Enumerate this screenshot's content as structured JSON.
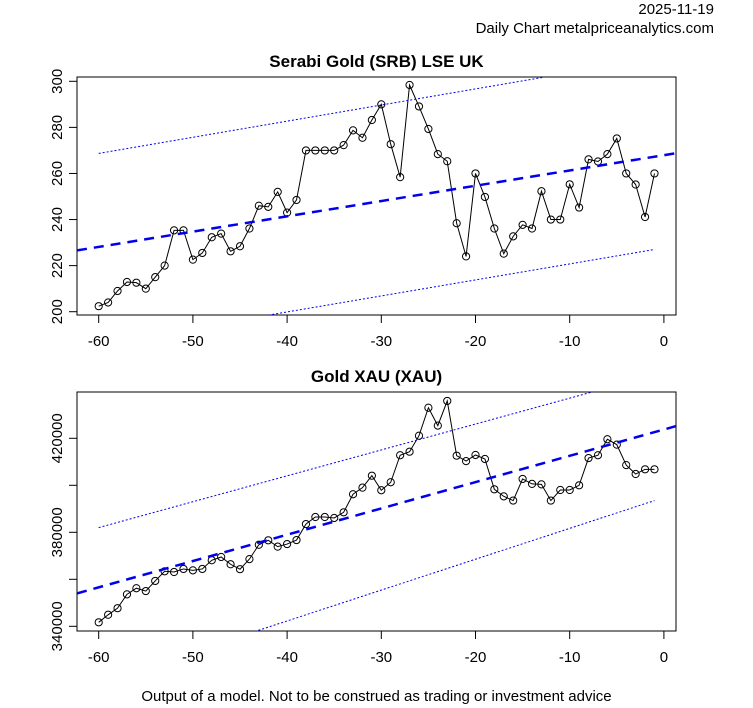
{
  "header": {
    "date": "2025-11-19",
    "source": "Daily Chart metalpriceanalytics.com"
  },
  "footer": "Output of a model. Not to be construed as trading or investment advice",
  "colors": {
    "price": "#000000",
    "trend": "#0000ee",
    "band": "#0000ee"
  },
  "chart_data": [
    {
      "type": "line",
      "title": "Serabi Gold (SRB) LSE UK",
      "xlabel": "",
      "ylabel": "",
      "xlim": [
        -62.3,
        1.3
      ],
      "ylim": [
        198,
        302
      ],
      "xticks": [
        -60,
        -50,
        -40,
        -30,
        -20,
        -10,
        0
      ],
      "xtick_labels": [
        "-60",
        "-50",
        "-40",
        "-30",
        "-20",
        "-10",
        "0"
      ],
      "yticks": [
        200,
        220,
        240,
        260,
        280,
        300
      ],
      "ytick_labels": [
        "200",
        "220",
        "240",
        "260",
        "280",
        "300"
      ],
      "grid": false,
      "x": [
        -60,
        -59,
        -58,
        -57,
        -56,
        -55,
        -54,
        -53,
        -52,
        -51,
        -50,
        -49,
        -48,
        -47,
        -46,
        -45,
        -44,
        -43,
        -42,
        -41,
        -40,
        -39,
        -38,
        -37,
        -36,
        -35,
        -34,
        -33,
        -32,
        -31,
        -30,
        -29,
        -28,
        -27,
        -26,
        -25,
        -24,
        -23,
        -22,
        -21,
        -20,
        -19,
        -18,
        -17,
        -16,
        -15,
        -14,
        -13,
        -12,
        -11,
        -10,
        -9,
        -8,
        -7,
        -6,
        -5,
        -4,
        -3,
        -2,
        -1
      ],
      "series": [
        {
          "name": "price",
          "style": "line+circles",
          "values": [
            202.4,
            204,
            209,
            212.9,
            212.6,
            210,
            215,
            220,
            235.3,
            235.3,
            222.6,
            225.5,
            232.3,
            233.9,
            226.2,
            228.4,
            236.1,
            246,
            245.5,
            252,
            243,
            248.5,
            270,
            270,
            270,
            270,
            272.3,
            278.7,
            275.5,
            283.2,
            290,
            272.7,
            258.4,
            298.4,
            289.1,
            279.3,
            268.4,
            265.3,
            238.4,
            224,
            260,
            249.8,
            236.1,
            225.2,
            232.7,
            237.7,
            236.1,
            252.3,
            240,
            240,
            255.3,
            245.2,
            266.1,
            265.2,
            268.4,
            275.2,
            260,
            255.2,
            241.1,
            260
          ]
        },
        {
          "name": "trend",
          "style": "dashed",
          "x": [
            -62.3,
            1.3
          ],
          "values": [
            226.6,
            268.8
          ]
        },
        {
          "name": "upper-band",
          "style": "dotted",
          "x": [
            -60,
            -1
          ],
          "values": [
            268.7,
            310
          ]
        },
        {
          "name": "lower-band",
          "style": "dotted",
          "x": [
            -60,
            -1
          ],
          "values": [
            186,
            227
          ]
        }
      ]
    },
    {
      "type": "line",
      "title": "Gold XAU (XAU)",
      "xlabel": "",
      "ylabel": "",
      "xlim": [
        -62.3,
        1.3
      ],
      "ylim": [
        338000,
        440000
      ],
      "xticks": [
        -60,
        -50,
        -40,
        -30,
        -20,
        -10,
        0
      ],
      "xtick_labels": [
        "-60",
        "-50",
        "-40",
        "-30",
        "-20",
        "-10",
        "0"
      ],
      "yticks": [
        340000,
        360000,
        380000,
        400000,
        420000
      ],
      "ytick_labels": [
        "340000",
        "",
        "380000",
        "",
        "420000"
      ],
      "grid": false,
      "x": [
        -60,
        -59,
        -58,
        -57,
        -56,
        -55,
        -54,
        -53,
        -52,
        -51,
        -50,
        -49,
        -48,
        -47,
        -46,
        -45,
        -44,
        -43,
        -42,
        -41,
        -40,
        -39,
        -38,
        -37,
        -36,
        -35,
        -34,
        -33,
        -32,
        -31,
        -30,
        -29,
        -28,
        -27,
        -26,
        -25,
        -24,
        -23,
        -22,
        -21,
        -20,
        -19,
        -18,
        -17,
        -16,
        -15,
        -14,
        -13,
        -12,
        -11,
        -10,
        -9,
        -8,
        -7,
        -6,
        -5,
        -4,
        -3,
        -2,
        -1
      ],
      "series": [
        {
          "name": "price",
          "style": "line+circles",
          "values": [
            341700,
            344900,
            347700,
            353600,
            356200,
            355000,
            359300,
            363400,
            363100,
            364400,
            363800,
            364400,
            368100,
            369500,
            366400,
            364300,
            368600,
            374700,
            376600,
            373900,
            375000,
            376700,
            383500,
            386500,
            386500,
            386100,
            388500,
            396200,
            399000,
            404100,
            397900,
            401300,
            412800,
            414300,
            421100,
            433000,
            425400,
            435900,
            412600,
            410300,
            412900,
            411200,
            398300,
            395300,
            393500,
            402700,
            400600,
            400400,
            393500,
            398000,
            398000,
            400000,
            411600,
            412800,
            419600,
            417300,
            408600,
            404800,
            406800,
            406800
          ]
        },
        {
          "name": "trend",
          "style": "dashed",
          "x": [
            -62.3,
            1.3
          ],
          "values": [
            354000,
            425200
          ]
        },
        {
          "name": "upper-band",
          "style": "dotted",
          "x": [
            -60,
            -1
          ],
          "values": [
            382000,
            447000
          ]
        },
        {
          "name": "lower-band",
          "style": "dotted",
          "x": [
            -60,
            -1
          ],
          "values": [
            316000,
            393500
          ]
        }
      ]
    }
  ]
}
